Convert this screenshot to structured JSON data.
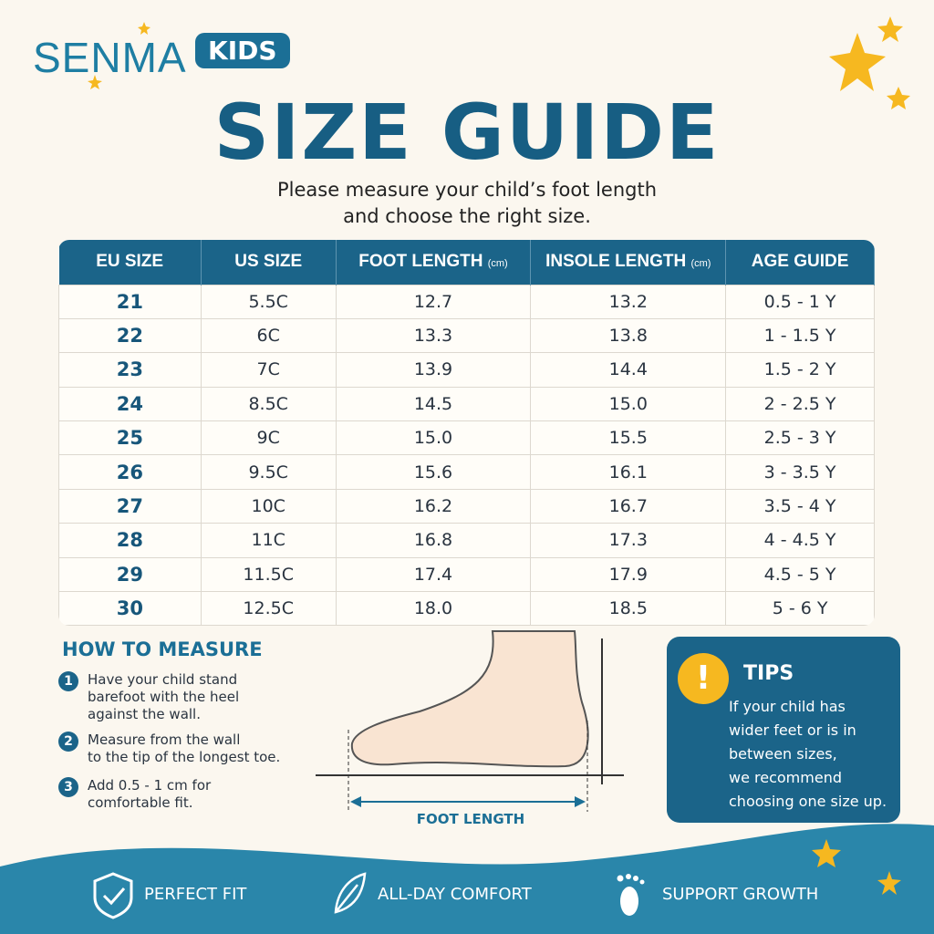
{
  "brand": {
    "name": "SENMA",
    "badge": "KIDS"
  },
  "header": {
    "title": "SIZE GUIDE",
    "subtitle": [
      "Please measure your child’s foot length",
      "and choose the right size."
    ]
  },
  "table": {
    "columns": [
      {
        "label": "EU SIZE"
      },
      {
        "label": "US SIZE"
      },
      {
        "label": "FOOT LENGTH",
        "unit": "(cm)"
      },
      {
        "label": "INSOLE LENGTH",
        "unit": "(cm)"
      },
      {
        "label": "AGE GUIDE"
      }
    ],
    "rows": [
      [
        "21",
        "5.5C",
        "12.7",
        "13.2",
        "0.5 - 1 Y"
      ],
      [
        "22",
        "6C",
        "13.3",
        "13.8",
        "1 - 1.5 Y"
      ],
      [
        "23",
        "7C",
        "13.9",
        "14.4",
        "1.5 - 2 Y"
      ],
      [
        "24",
        "8.5C",
        "14.5",
        "15.0",
        "2 - 2.5 Y"
      ],
      [
        "25",
        "9C",
        "15.0",
        "15.5",
        "2.5 - 3 Y"
      ],
      [
        "26",
        "9.5C",
        "15.6",
        "16.1",
        "3 - 3.5 Y"
      ],
      [
        "27",
        "10C",
        "16.2",
        "16.7",
        "3.5 - 4 Y"
      ],
      [
        "28",
        "11C",
        "16.8",
        "17.3",
        "4 - 4.5 Y"
      ],
      [
        "29",
        "11.5C",
        "17.4",
        "17.9",
        "4.5 - 5 Y"
      ],
      [
        "30",
        "12.5C",
        "18.0",
        "18.5",
        "5 - 6 Y"
      ]
    ]
  },
  "how_to_measure": {
    "title": "HOW TO MEASURE",
    "steps": [
      {
        "number": "1",
        "lines": [
          "Have your child stand",
          "barefoot with the heel",
          "against the wall."
        ]
      },
      {
        "number": "2",
        "lines": [
          "Measure from the wall",
          "to the tip of the longest toe."
        ]
      },
      {
        "number": "3",
        "lines": [
          "Add 0.5 - 1 cm for",
          "comfortable fit."
        ]
      }
    ]
  },
  "diagram": {
    "label": "FOOT LENGTH"
  },
  "tips": {
    "icon": "!",
    "title": "TIPS",
    "lines": [
      "If your child has",
      "wider feet or is in",
      "between sizes,",
      "we recommend",
      "choosing one size up."
    ]
  },
  "footer": {
    "features": [
      "PERFECT FIT",
      "ALL-DAY COMFORT",
      "SUPPORT GROWTH"
    ]
  }
}
